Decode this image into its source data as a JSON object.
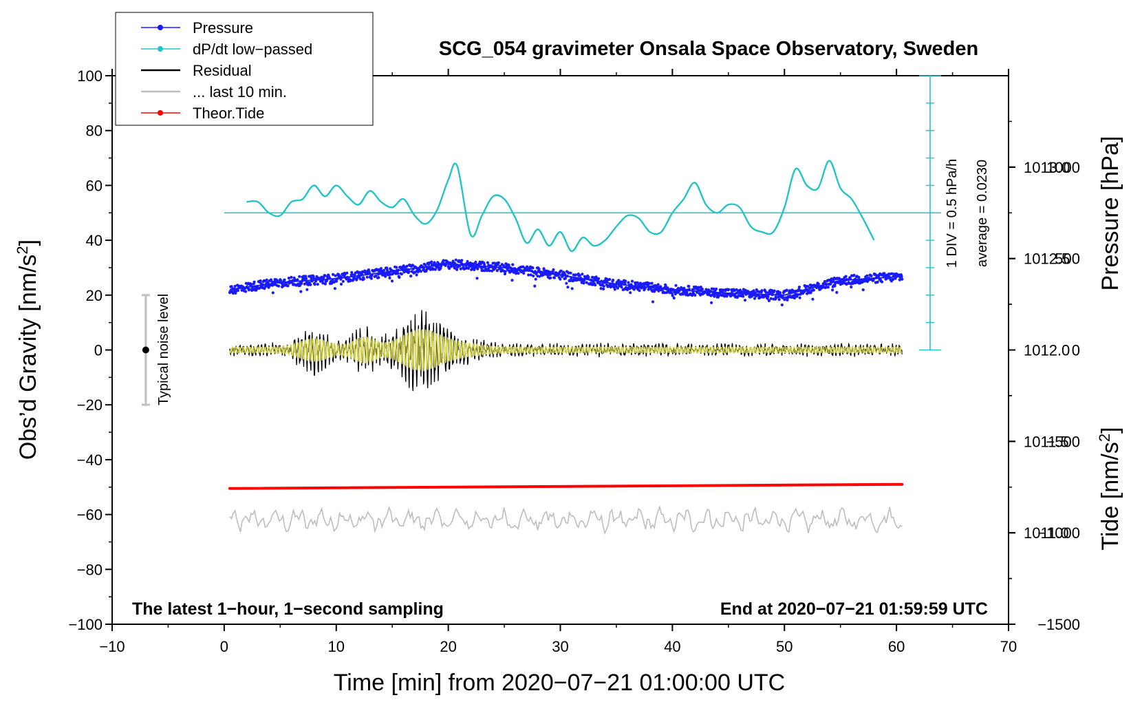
{
  "colors": {
    "pressure": "#1a1aff",
    "dpdt": "#22c4c4",
    "residual": "#000000",
    "last10": "#bdbdbd",
    "tide": "#ff0000",
    "filtered": "#d6d62a",
    "noise_bar": "#c0c0c0"
  },
  "chart_data": {
    "type": "line",
    "title": "SCG_054 gravimeter Onsala Space Observatory, Sweden",
    "xlabel": "Time [min] from 2020−07−21 01:00:00 UTC",
    "ylabel_left": "Obs’d Gravity [nm/s",
    "ylabel_left_sup": "2",
    "ylabel_left_close": "]",
    "ylabel_pressure": "Pressure [hPa]",
    "ylabel_tide": "Tide [nm/s",
    "ylabel_tide_sup": "2",
    "ylabel_tide_close": "]",
    "xlim": [
      -10,
      70
    ],
    "ylim": [
      -100,
      100
    ],
    "x_ticks": [
      {
        "v": -10,
        "label": "−10"
      },
      {
        "v": 0,
        "label": "0"
      },
      {
        "v": 10,
        "label": "10"
      },
      {
        "v": 20,
        "label": "20"
      },
      {
        "v": 30,
        "label": "30"
      },
      {
        "v": 40,
        "label": "40"
      },
      {
        "v": 50,
        "label": "50"
      },
      {
        "v": 60,
        "label": "60"
      },
      {
        "v": 70,
        "label": "70"
      }
    ],
    "y_ticks": [
      {
        "v": 100,
        "label": "100"
      },
      {
        "v": 80,
        "label": "80"
      },
      {
        "v": 60,
        "label": "60"
      },
      {
        "v": 40,
        "label": "40"
      },
      {
        "v": 20,
        "label": "20"
      },
      {
        "v": 0,
        "label": "0"
      },
      {
        "v": -20,
        "label": "−20"
      },
      {
        "v": -40,
        "label": "−40"
      },
      {
        "v": -60,
        "label": "−60"
      },
      {
        "v": -80,
        "label": "−80"
      },
      {
        "v": -100,
        "label": "−100"
      }
    ],
    "pressure_axis": {
      "ylim": [
        1010.5,
        1013.5
      ],
      "ticks": [
        {
          "v": 1013.0,
          "label": "1013.0"
        },
        {
          "v": 1012.5,
          "label": "1012.5"
        },
        {
          "v": 1012.0,
          "label": "1012.0"
        },
        {
          "v": 1011.5,
          "label": "1011.5"
        },
        {
          "v": 1011.0,
          "label": "1011.0"
        }
      ]
    },
    "tide_axis": {
      "ylim": [
        -1500,
        1500
      ],
      "ticks": [
        {
          "v": 1000,
          "label": "1000"
        },
        {
          "v": 500,
          "label": "500"
        },
        {
          "v": 0,
          "label": "0"
        },
        {
          "v": -500,
          "label": "−500"
        },
        {
          "v": -1000,
          "label": "−1000"
        },
        {
          "v": -1500,
          "label": "−1500"
        }
      ]
    },
    "legend": [
      {
        "label": "Pressure",
        "color": "#1a1aff",
        "marker": true
      },
      {
        "label": "dP/dt low−passed",
        "color": "#22c4c4",
        "marker": true
      },
      {
        "label": "Residual",
        "color": "#000000",
        "marker": false
      },
      {
        "label": "... last 10 min.",
        "color": "#bdbdbd",
        "marker": false
      },
      {
        "label": "Theor.Tide",
        "color": "#ff0000",
        "marker": true
      }
    ],
    "series": [
      {
        "name": "Pressure",
        "units": "hPa",
        "x": [
          0.5,
          60.5
        ],
        "trend": [
          [
            0.5,
            1012.33
          ],
          [
            5,
            1012.37
          ],
          [
            10,
            1012.39
          ],
          [
            15,
            1012.43
          ],
          [
            20,
            1012.47
          ],
          [
            25,
            1012.45
          ],
          [
            30,
            1012.41
          ],
          [
            35,
            1012.36
          ],
          [
            40,
            1012.33
          ],
          [
            45,
            1012.31
          ],
          [
            50,
            1012.3
          ],
          [
            55,
            1012.38
          ],
          [
            60,
            1012.4
          ],
          [
            60.5,
            1012.4
          ]
        ]
      },
      {
        "name": "dP/dt low−passed",
        "units": "hPa/h (0.5 per div)",
        "baseline": 50,
        "x": [
          2,
          3,
          4,
          5,
          6,
          7,
          8,
          9,
          10,
          11,
          12,
          13,
          14,
          15,
          16,
          17,
          18,
          19,
          20,
          20.8,
          22,
          23,
          24,
          25,
          26,
          27,
          28,
          29,
          30,
          31,
          32,
          33,
          34,
          35,
          36,
          37,
          38,
          39,
          40,
          41,
          42,
          43,
          44,
          45,
          46,
          47,
          48,
          49,
          50,
          51,
          52,
          53,
          54,
          55,
          56,
          57,
          58
        ],
        "y": [
          54,
          54,
          50,
          49,
          54,
          55,
          60,
          56,
          60,
          56,
          53,
          58,
          54,
          52,
          55,
          49,
          46,
          51,
          62,
          67,
          42,
          49,
          56,
          55,
          48,
          39,
          44,
          38,
          43,
          36,
          41,
          38,
          40,
          45,
          49,
          48,
          43,
          43,
          50,
          55,
          61,
          53,
          50,
          53,
          52,
          45,
          43,
          43,
          52,
          66,
          60,
          59,
          69,
          59,
          55,
          48,
          40
        ]
      },
      {
        "name": "Residual",
        "units": "nm/s2",
        "x": [
          0.5,
          60.5
        ],
        "amplitude_range": [
          -15,
          15
        ]
      },
      {
        "name": "... last 10 min.",
        "units": "nm/s2",
        "offset": -62,
        "x": [
          0.5,
          60.5
        ],
        "amplitude_range": [
          -66,
          -56
        ]
      },
      {
        "name": "Theor.Tide",
        "units": "nm/s2",
        "x": [
          0.5,
          60.5
        ],
        "y_start": -50.5,
        "y_end": -49
      }
    ],
    "noise_bar": {
      "x": -7,
      "center": 0,
      "low": -20,
      "high": 20,
      "label": "Typical noise level"
    },
    "dpdt_annotation": {
      "line1": "1 DIV = 0.5 hPa/h",
      "line2": "average = 0.0230",
      "x": 63,
      "y_low": 0,
      "y_high": 100
    },
    "footer_left": "The latest 1−hour, 1−second sampling",
    "footer_right": "End at 2020−07−21 01:59:59 UTC"
  }
}
